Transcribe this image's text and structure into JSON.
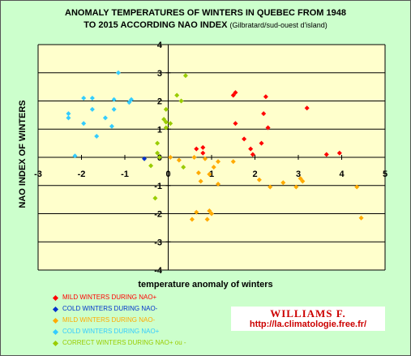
{
  "title_line1": "ANOMALY TEMPERATURES OF WINTERS IN QUEBEC FROM 1948",
  "title_line2": "TO 2015 ACCORDING NAO INDEX",
  "title_sub": "(Gilbratard/sud-ouest d'island)",
  "credit_name": "WILLIAMS F.",
  "credit_url": "http://la.climatologie.free.fr/",
  "colors": {
    "chart_frame": "#ccffcc",
    "plot_area": "#ffffcc",
    "gridline": "#000000",
    "mild_nao_plus": "#ff0000",
    "cold_nao_minus": "#0033cc",
    "mild_nao_minus": "#ffaa00",
    "cold_nao_plus": "#33ccff",
    "correct": "#99cc00",
    "credit_text": "#cc0000"
  },
  "chart_data": {
    "type": "scatter",
    "xlabel": "temperature anomaly of winters",
    "ylabel": "NAO INDEX OF WINTERS",
    "xlim": [
      -3,
      5
    ],
    "ylim": [
      -4,
      4
    ],
    "x_ticks": [
      "-3",
      "-2",
      "-1",
      "0",
      "1",
      "2",
      "3",
      "4",
      "5"
    ],
    "y_ticks": [
      "4",
      "3",
      "2",
      "1",
      "0",
      "-1",
      "-2",
      "-3",
      "-4"
    ],
    "horizontal_grid": true,
    "legend_position": "bottom-left",
    "series": [
      {
        "name": "MILD WINTERS DURING NAO+",
        "color": "#ff0000",
        "points": [
          {
            "x": 1.55,
            "y": 2.3
          },
          {
            "x": 1.5,
            "y": 2.2
          },
          {
            "x": 2.25,
            "y": 2.15
          },
          {
            "x": 3.2,
            "y": 1.75
          },
          {
            "x": 2.2,
            "y": 1.55
          },
          {
            "x": 1.55,
            "y": 1.2
          },
          {
            "x": 2.3,
            "y": 1.05
          },
          {
            "x": 1.75,
            "y": 0.65
          },
          {
            "x": 2.15,
            "y": 0.5
          },
          {
            "x": 0.65,
            "y": 0.3
          },
          {
            "x": 0.8,
            "y": 0.35
          },
          {
            "x": 1.9,
            "y": 0.3
          },
          {
            "x": 3.65,
            "y": 0.1
          },
          {
            "x": 3.95,
            "y": 0.15
          },
          {
            "x": 1.95,
            "y": 0.1
          },
          {
            "x": 0.8,
            "y": 0.15
          }
        ]
      },
      {
        "name": "COLD WINTERS DURING NAO-",
        "color": "#0033cc",
        "points": [
          {
            "x": -0.55,
            "y": -0.05
          }
        ]
      },
      {
        "name": "MILD WINTERS DURING NAO-",
        "color": "#ffaa00",
        "points": [
          {
            "x": 0.05,
            "y": 0.0
          },
          {
            "x": 0.25,
            "y": -0.1
          },
          {
            "x": 0.6,
            "y": 0.0
          },
          {
            "x": 0.85,
            "y": -0.05
          },
          {
            "x": 1.15,
            "y": -0.15
          },
          {
            "x": 1.5,
            "y": -0.15
          },
          {
            "x": 1.05,
            "y": -0.35
          },
          {
            "x": 0.7,
            "y": -0.55
          },
          {
            "x": 0.95,
            "y": -0.6
          },
          {
            "x": 0.75,
            "y": -0.85
          },
          {
            "x": 1.15,
            "y": -0.95
          },
          {
            "x": 2.1,
            "y": -0.8
          },
          {
            "x": 2.65,
            "y": -0.9
          },
          {
            "x": 3.05,
            "y": -0.75
          },
          {
            "x": 3.1,
            "y": -0.85
          },
          {
            "x": 2.35,
            "y": -1.05
          },
          {
            "x": 2.95,
            "y": -1.05
          },
          {
            "x": 4.35,
            "y": -1.05
          },
          {
            "x": 0.95,
            "y": -1.9
          },
          {
            "x": 1.0,
            "y": -2.0
          },
          {
            "x": 0.55,
            "y": -2.2
          },
          {
            "x": 0.9,
            "y": -2.2
          },
          {
            "x": 4.45,
            "y": -2.15
          },
          {
            "x": 0.65,
            "y": -1.95
          }
        ]
      },
      {
        "name": "COLD WINTERS DURING NAO+",
        "color": "#33ccff",
        "points": [
          {
            "x": -1.15,
            "y": 3.0
          },
          {
            "x": -1.95,
            "y": 2.1
          },
          {
            "x": -1.75,
            "y": 2.1
          },
          {
            "x": -1.25,
            "y": 2.05
          },
          {
            "x": -0.85,
            "y": 2.05
          },
          {
            "x": -0.9,
            "y": 1.95
          },
          {
            "x": -1.75,
            "y": 1.7
          },
          {
            "x": -1.25,
            "y": 1.7
          },
          {
            "x": -2.3,
            "y": 1.55
          },
          {
            "x": -2.3,
            "y": 1.4
          },
          {
            "x": -1.45,
            "y": 1.4
          },
          {
            "x": -1.95,
            "y": 1.2
          },
          {
            "x": -1.3,
            "y": 1.1
          },
          {
            "x": -1.65,
            "y": 0.75
          },
          {
            "x": -2.15,
            "y": 0.05
          }
        ]
      },
      {
        "name": "CORRECT WINTERS DURING NAO+ ou -",
        "color": "#99cc00",
        "points": [
          {
            "x": 0.4,
            "y": 2.9
          },
          {
            "x": 0.2,
            "y": 2.2
          },
          {
            "x": 0.3,
            "y": 2.0
          },
          {
            "x": -0.05,
            "y": 1.7
          },
          {
            "x": -0.1,
            "y": 1.35
          },
          {
            "x": -0.05,
            "y": 1.25
          },
          {
            "x": 0.05,
            "y": 1.2
          },
          {
            "x": -0.05,
            "y": 1.05
          },
          {
            "x": -0.25,
            "y": 0.5
          },
          {
            "x": -0.25,
            "y": 0.15
          },
          {
            "x": -0.2,
            "y": 0.0
          },
          {
            "x": -0.4,
            "y": -0.3
          },
          {
            "x": 0.35,
            "y": -0.35
          },
          {
            "x": -0.3,
            "y": -1.45
          }
        ]
      }
    ]
  }
}
